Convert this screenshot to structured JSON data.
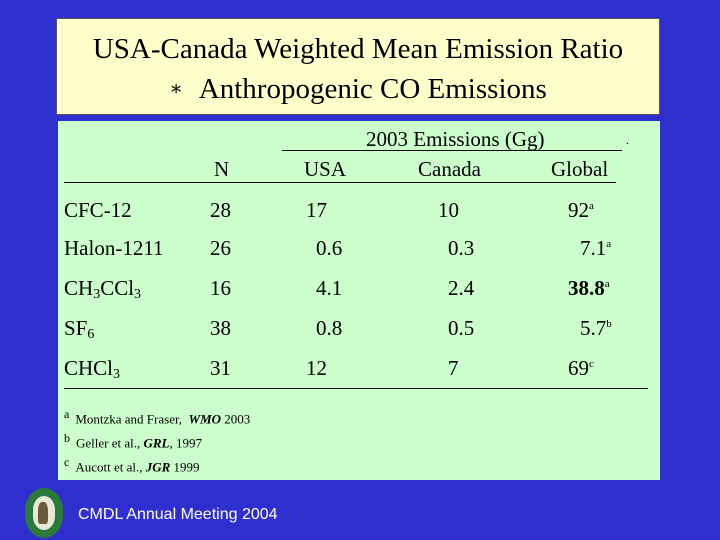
{
  "title": {
    "line1": "USA-Canada Weighted Mean Emission Ratio",
    "bullet": "∗",
    "line2": "Anthropogenic CO Emissions"
  },
  "table": {
    "group_header": "2003 Emissions (Gg)",
    "columns": [
      "N",
      "USA",
      "Canada",
      "Global"
    ],
    "rows": [
      {
        "name": "CFC-12",
        "n": "28",
        "usa": "17",
        "canada": "10",
        "global": "92",
        "note": "a",
        "bold": false
      },
      {
        "name": "Halon-1211",
        "n": "26",
        "usa": "0.6",
        "canada": "0.3",
        "global": "7.1",
        "note": "a",
        "bold": false
      },
      {
        "name_parts": [
          "CH",
          "3",
          "CCl",
          "3"
        ],
        "n": "16",
        "usa": "4.1",
        "canada": "2.4",
        "global": "38.8",
        "note": "a",
        "bold": true
      },
      {
        "name_parts": [
          "SF",
          "6"
        ],
        "n": "38",
        "usa": "0.8",
        "canada": "0.5",
        "global": "5.7",
        "note": "b",
        "bold": false
      },
      {
        "name_parts": [
          "CHCl",
          "3"
        ],
        "n": "31",
        "usa": "12",
        "canada": "7",
        "global": "69",
        "note": "c",
        "bold": false
      }
    ]
  },
  "footnotes": [
    {
      "mark": "a",
      "authors": "Montzka and Fraser,",
      "journal": "WMO",
      "year": "2003"
    },
    {
      "mark": "b",
      "authors": "Geller et al.,",
      "journal": "GRL",
      "year": ", 1997"
    },
    {
      "mark": "c",
      "authors": "Aucott et al.,",
      "journal": "JGR",
      "year": "1999"
    }
  ],
  "footer": {
    "text": "CMDL Annual Meeting 2004",
    "logo_icon": "noaa-cmdl-logo"
  }
}
